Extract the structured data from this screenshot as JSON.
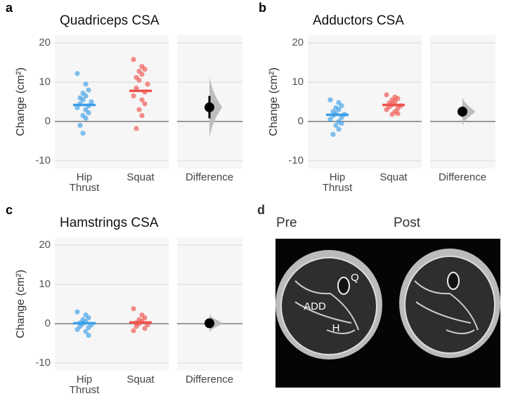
{
  "chart_data": [
    {
      "type": "strip",
      "panel_label": "a",
      "title": "Quadriceps CSA",
      "y_label": "Change (cm²)",
      "ylim": [
        -12,
        22
      ],
      "yticks": [
        -10,
        0,
        10,
        20
      ],
      "grid": true,
      "series": [
        {
          "name": "Hip Thrust",
          "color": "#3a9ee8",
          "mean": 4.2,
          "values": [
            12.2,
            9.5,
            8,
            7.2,
            6.5,
            6,
            5.5,
            5,
            4.5,
            4,
            3.5,
            3,
            2.2,
            1.5,
            0.8,
            -1,
            -3
          ]
        },
        {
          "name": "Squat",
          "color": "#f0524c",
          "mean": 7.8,
          "values": [
            15.8,
            14,
            13.3,
            12.8,
            12,
            11.2,
            10.5,
            9.5,
            8.5,
            7.5,
            6.5,
            5.5,
            4.5,
            3,
            1.5,
            -1.8
          ]
        }
      ],
      "difference": {
        "label": "Difference",
        "mean": 3.6,
        "ci": [
          0.8,
          6.5
        ]
      }
    },
    {
      "type": "strip",
      "panel_label": "b",
      "title": "Adductors CSA",
      "y_label": "Change (cm²)",
      "ylim": [
        -12,
        22
      ],
      "yticks": [
        -10,
        0,
        10,
        20
      ],
      "grid": true,
      "series": [
        {
          "name": "Hip Thrust",
          "color": "#3a9ee8",
          "mean": 1.7,
          "values": [
            5.5,
            4.8,
            4,
            3.5,
            3,
            2.5,
            2,
            1.8,
            1.5,
            1,
            0.5,
            0,
            -0.5,
            -1,
            -2,
            -3.3
          ]
        },
        {
          "name": "Squat",
          "color": "#f0524c",
          "mean": 4.2,
          "values": [
            6.8,
            6.2,
            5.8,
            5.5,
            5,
            4.7,
            4.3,
            4,
            3.7,
            3.3,
            3,
            2.5,
            2,
            1.8
          ]
        }
      ],
      "difference": {
        "label": "Difference",
        "mean": 2.5,
        "ci": [
          1.2,
          3.8
        ]
      }
    },
    {
      "type": "strip",
      "panel_label": "c",
      "title": "Hamstrings CSA",
      "y_label": "Change (cm²)",
      "ylim": [
        -12,
        22
      ],
      "yticks": [
        -10,
        0,
        10,
        20
      ],
      "grid": true,
      "series": [
        {
          "name": "Hip Thrust",
          "color": "#3a9ee8",
          "mean": 0.1,
          "values": [
            3,
            2.2,
            1.5,
            1,
            0.5,
            0.2,
            0,
            -0.3,
            -0.7,
            -1,
            -1.5,
            -2,
            -3
          ]
        },
        {
          "name": "Squat",
          "color": "#f0524c",
          "mean": 0.3,
          "values": [
            3.8,
            2.2,
            1.5,
            1,
            0.6,
            0.2,
            0,
            -0.3,
            -0.7,
            -1.2,
            -1.8
          ]
        }
      ],
      "difference": {
        "label": "Difference",
        "mean": 0.1,
        "ci": [
          -0.7,
          1.0
        ]
      }
    }
  ],
  "panel_d": {
    "label": "d",
    "pre": "Pre",
    "post": "Post",
    "annotations": [
      "Q",
      "ADD",
      "H"
    ]
  }
}
